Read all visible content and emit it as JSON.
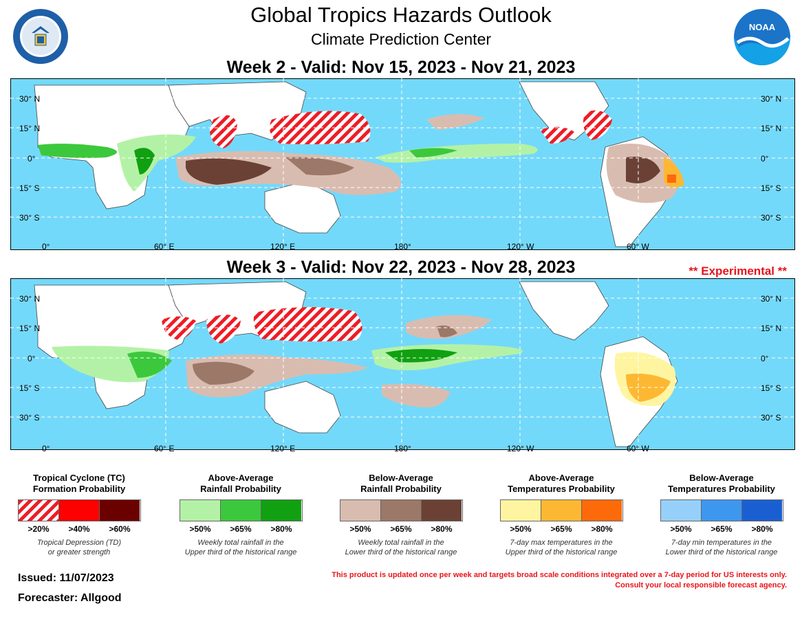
{
  "header": {
    "title": "Global Tropics Hazards Outlook",
    "subtitle": "Climate Prediction Center"
  },
  "week2": {
    "title": "Week 2 - Valid: Nov 15, 2023 - Nov 21, 2023"
  },
  "week3": {
    "title": "Week 3 - Valid: Nov 22, 2023 - Nov 28, 2023",
    "badge": "** Experimental **"
  },
  "axes": {
    "lat_labels": [
      "30° N",
      "15° N",
      "0°",
      "15° S",
      "30° S"
    ],
    "lon_labels": [
      "0°",
      "60° E",
      "120° E",
      "180°",
      "120° W",
      "60° W"
    ]
  },
  "legend": [
    {
      "title": "Tropical Cyclone (TC)\nFormation Probability",
      "levels": [
        ">20%",
        ">40%",
        ">60%"
      ],
      "colors": [
        "hatch",
        "#ff0000",
        "#6b0000"
      ],
      "note": "Tropical Depression (TD)\nor greater strength"
    },
    {
      "title": "Above-Average\nRainfall Probability",
      "levels": [
        ">50%",
        ">65%",
        ">80%"
      ],
      "colors": [
        "#b3f2a6",
        "#3cc83c",
        "#11a011"
      ],
      "note": "Weekly total rainfall in the\nUpper third of the historical range"
    },
    {
      "title": "Below-Average\nRainfall Probability",
      "levels": [
        ">50%",
        ">65%",
        ">80%"
      ],
      "colors": [
        "#d9bcb0",
        "#9c7869",
        "#6b4136"
      ],
      "note": "Weekly total rainfall in the\nLower third of the historical range"
    },
    {
      "title": "Above-Average\nTemperatures Probability",
      "levels": [
        ">50%",
        ">65%",
        ">80%"
      ],
      "colors": [
        "#fff5a0",
        "#fdb833",
        "#fd6a0a"
      ],
      "note": "7-day max temperatures in the\nUpper third of the historical range"
    },
    {
      "title": "Below-Average\nTemperatures Probability",
      "levels": [
        ">50%",
        ">65%",
        ">80%"
      ],
      "colors": [
        "#96d0fa",
        "#3e97ee",
        "#1a5fd2"
      ],
      "note": "7-day min temperatures in the\nLower third of the historical range"
    }
  ],
  "footer": {
    "issued": "Issued: 11/07/2023",
    "forecaster": "Forecaster: Allgood",
    "disclaimer_1": "This product is updated once per week and targets broad scale conditions integrated over a 7-day period for US interests only.",
    "disclaimer_2": "Consult your local responsible forecast agency."
  },
  "colors": {
    "ocean": "#73d9fa",
    "land": "#ffffff",
    "disclaimer": "#e8141b"
  }
}
